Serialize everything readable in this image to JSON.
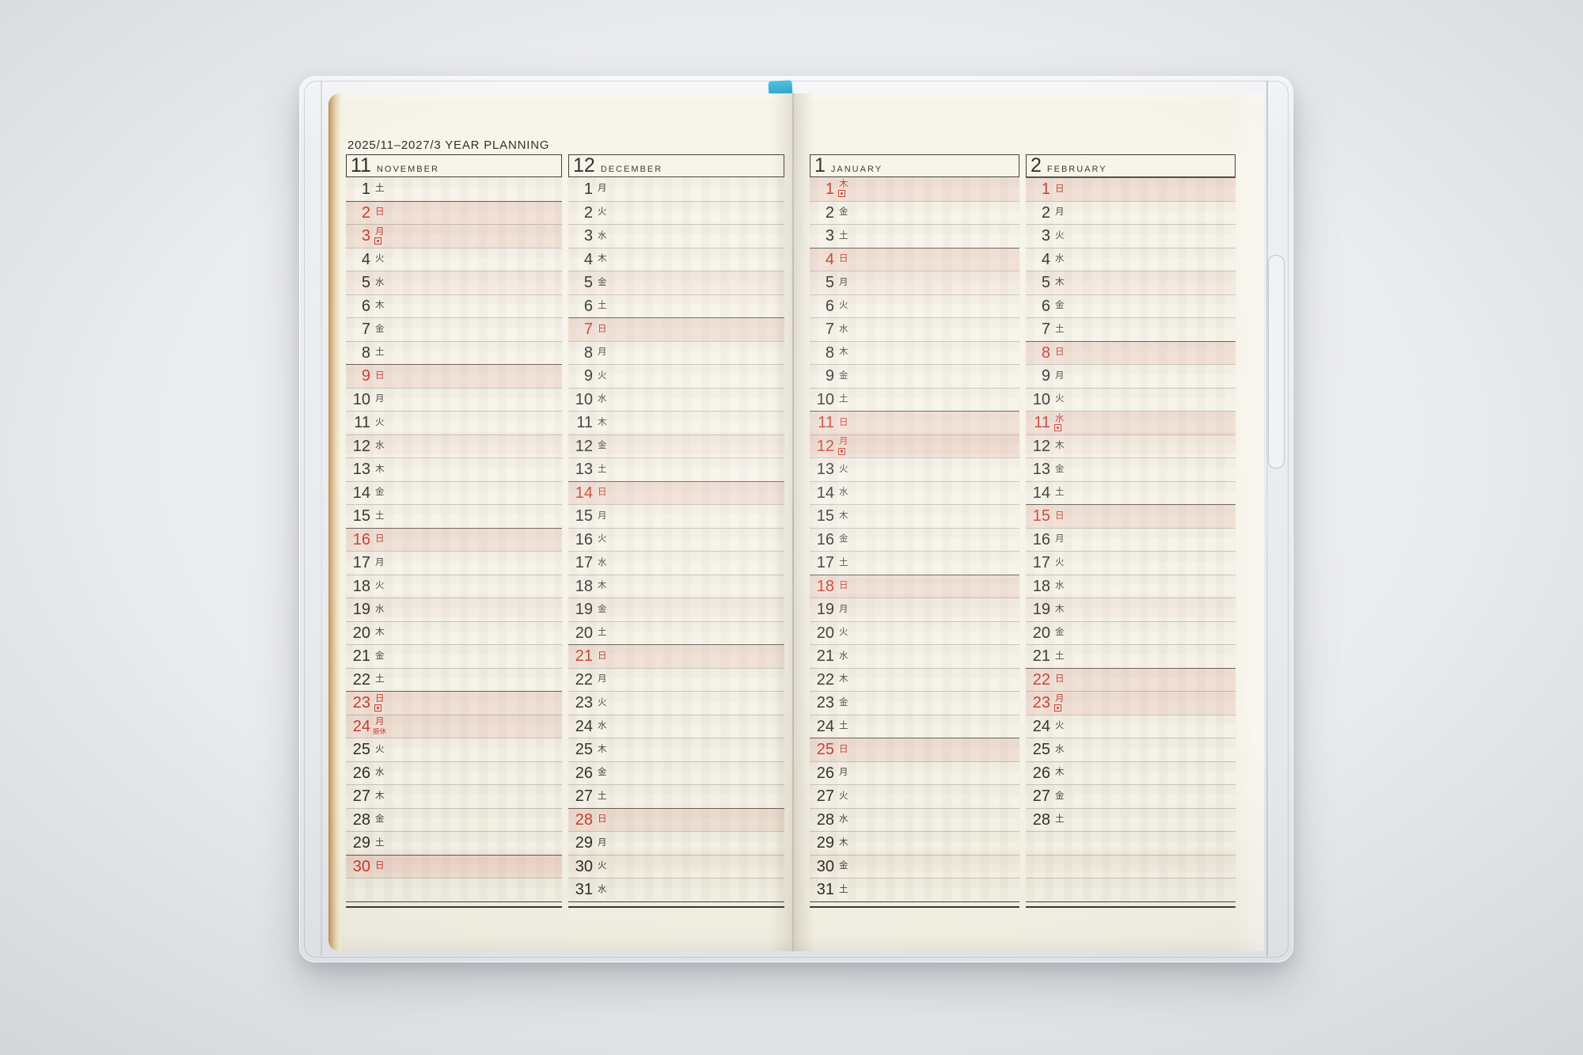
{
  "header": {
    "title": "2025/11–2027/3 YEAR PLANNING"
  },
  "labels": {
    "substitute_holiday": "振休"
  },
  "colors": {
    "background": "#e9ebed",
    "cover": "#e8eaed",
    "paper": "#f5f2e7",
    "page_edge_tan": "#d5b384",
    "grid_line": "#b5b2a6",
    "week_line": "#3a3833",
    "text_dark": "#2e2d28",
    "accent_red": "#c43a2b",
    "pink_row": "#f3e1dc",
    "bookmark_blue": "#2b9ec6"
  },
  "months": [
    {
      "num": "11",
      "name": "NOVEMBER",
      "page": "left",
      "blank_rows": 1,
      "days": [
        [
          1,
          "土",
          ""
        ],
        [
          2,
          "日",
          "s"
        ],
        [
          3,
          "月",
          "h"
        ],
        [
          4,
          "火",
          ""
        ],
        [
          5,
          "水",
          ""
        ],
        [
          6,
          "木",
          ""
        ],
        [
          7,
          "金",
          ""
        ],
        [
          8,
          "土",
          ""
        ],
        [
          9,
          "日",
          "s"
        ],
        [
          10,
          "月",
          ""
        ],
        [
          11,
          "火",
          ""
        ],
        [
          12,
          "水",
          ""
        ],
        [
          13,
          "木",
          ""
        ],
        [
          14,
          "金",
          ""
        ],
        [
          15,
          "土",
          ""
        ],
        [
          16,
          "日",
          "s"
        ],
        [
          17,
          "月",
          ""
        ],
        [
          18,
          "火",
          ""
        ],
        [
          19,
          "水",
          ""
        ],
        [
          20,
          "木",
          ""
        ],
        [
          21,
          "金",
          ""
        ],
        [
          22,
          "土",
          ""
        ],
        [
          23,
          "日",
          "h"
        ],
        [
          24,
          "月",
          "hf"
        ],
        [
          25,
          "火",
          ""
        ],
        [
          26,
          "水",
          ""
        ],
        [
          27,
          "木",
          ""
        ],
        [
          28,
          "金",
          ""
        ],
        [
          29,
          "土",
          ""
        ],
        [
          30,
          "日",
          "s"
        ]
      ]
    },
    {
      "num": "12",
      "name": "DECEMBER",
      "page": "left",
      "blank_rows": 0,
      "days": [
        [
          1,
          "月",
          ""
        ],
        [
          2,
          "火",
          ""
        ],
        [
          3,
          "水",
          ""
        ],
        [
          4,
          "木",
          ""
        ],
        [
          5,
          "金",
          ""
        ],
        [
          6,
          "土",
          ""
        ],
        [
          7,
          "日",
          "s"
        ],
        [
          8,
          "月",
          ""
        ],
        [
          9,
          "火",
          ""
        ],
        [
          10,
          "水",
          ""
        ],
        [
          11,
          "木",
          ""
        ],
        [
          12,
          "金",
          ""
        ],
        [
          13,
          "土",
          ""
        ],
        [
          14,
          "日",
          "s"
        ],
        [
          15,
          "月",
          ""
        ],
        [
          16,
          "火",
          ""
        ],
        [
          17,
          "水",
          ""
        ],
        [
          18,
          "木",
          ""
        ],
        [
          19,
          "金",
          ""
        ],
        [
          20,
          "土",
          ""
        ],
        [
          21,
          "日",
          "s"
        ],
        [
          22,
          "月",
          ""
        ],
        [
          23,
          "火",
          ""
        ],
        [
          24,
          "水",
          ""
        ],
        [
          25,
          "木",
          ""
        ],
        [
          26,
          "金",
          ""
        ],
        [
          27,
          "土",
          ""
        ],
        [
          28,
          "日",
          "s"
        ],
        [
          29,
          "月",
          ""
        ],
        [
          30,
          "火",
          ""
        ],
        [
          31,
          "水",
          ""
        ]
      ]
    },
    {
      "num": "1",
      "name": "JANUARY",
      "page": "right",
      "blank_rows": 0,
      "days": [
        [
          1,
          "木",
          "h"
        ],
        [
          2,
          "金",
          ""
        ],
        [
          3,
          "土",
          ""
        ],
        [
          4,
          "日",
          "s"
        ],
        [
          5,
          "月",
          ""
        ],
        [
          6,
          "火",
          ""
        ],
        [
          7,
          "水",
          ""
        ],
        [
          8,
          "木",
          ""
        ],
        [
          9,
          "金",
          ""
        ],
        [
          10,
          "土",
          ""
        ],
        [
          11,
          "日",
          "s"
        ],
        [
          12,
          "月",
          "h"
        ],
        [
          13,
          "火",
          ""
        ],
        [
          14,
          "水",
          ""
        ],
        [
          15,
          "木",
          ""
        ],
        [
          16,
          "金",
          ""
        ],
        [
          17,
          "土",
          ""
        ],
        [
          18,
          "日",
          "s"
        ],
        [
          19,
          "月",
          ""
        ],
        [
          20,
          "火",
          ""
        ],
        [
          21,
          "水",
          ""
        ],
        [
          22,
          "木",
          ""
        ],
        [
          23,
          "金",
          ""
        ],
        [
          24,
          "土",
          ""
        ],
        [
          25,
          "日",
          "s"
        ],
        [
          26,
          "月",
          ""
        ],
        [
          27,
          "火",
          ""
        ],
        [
          28,
          "水",
          ""
        ],
        [
          29,
          "木",
          ""
        ],
        [
          30,
          "金",
          ""
        ],
        [
          31,
          "土",
          ""
        ]
      ]
    },
    {
      "num": "2",
      "name": "FEBRUARY",
      "page": "right",
      "blank_rows": 3,
      "days": [
        [
          1,
          "日",
          "s"
        ],
        [
          2,
          "月",
          ""
        ],
        [
          3,
          "火",
          ""
        ],
        [
          4,
          "水",
          ""
        ],
        [
          5,
          "木",
          ""
        ],
        [
          6,
          "金",
          ""
        ],
        [
          7,
          "土",
          ""
        ],
        [
          8,
          "日",
          "s"
        ],
        [
          9,
          "月",
          ""
        ],
        [
          10,
          "火",
          ""
        ],
        [
          11,
          "水",
          "h"
        ],
        [
          12,
          "木",
          ""
        ],
        [
          13,
          "金",
          ""
        ],
        [
          14,
          "土",
          ""
        ],
        [
          15,
          "日",
          "s"
        ],
        [
          16,
          "月",
          ""
        ],
        [
          17,
          "火",
          ""
        ],
        [
          18,
          "水",
          ""
        ],
        [
          19,
          "木",
          ""
        ],
        [
          20,
          "金",
          ""
        ],
        [
          21,
          "土",
          ""
        ],
        [
          22,
          "日",
          "s"
        ],
        [
          23,
          "月",
          "h"
        ],
        [
          24,
          "火",
          ""
        ],
        [
          25,
          "水",
          ""
        ],
        [
          26,
          "木",
          ""
        ],
        [
          27,
          "金",
          ""
        ],
        [
          28,
          "土",
          ""
        ]
      ]
    }
  ]
}
